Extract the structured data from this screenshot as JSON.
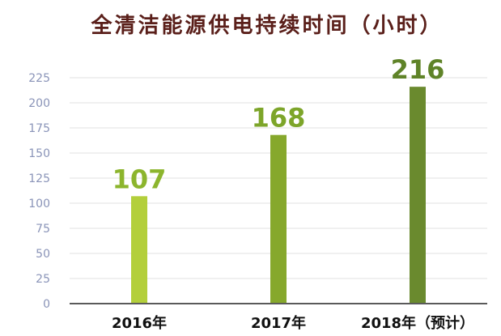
{
  "chart_data": {
    "type": "bar",
    "title": "全清洁能源供电持续时间（小时）",
    "xlabel": "",
    "ylabel": "",
    "ylim": [
      0,
      225
    ],
    "yticks": [
      "0",
      "25",
      "50",
      "75",
      "100",
      "125",
      "150",
      "175",
      "200",
      "225"
    ],
    "grid": true,
    "legend": "none",
    "categories": [
      "2016年",
      "2017年",
      "2018年（预计）"
    ],
    "values": [
      107,
      168,
      216
    ],
    "data_labels": [
      "107",
      "168",
      "216"
    ],
    "colors": {
      "bars": [
        "#b3cf3b",
        "#86a82c",
        "#6a8a2e"
      ],
      "labels": [
        "#8cb52d",
        "#7da52a",
        "#5f8328"
      ],
      "title": "#5a1f1a",
      "tick_text": "#8a94b8",
      "gridline": "#e2e2e2",
      "baseline": "#5a5a5a",
      "category_text": "#111111"
    }
  }
}
